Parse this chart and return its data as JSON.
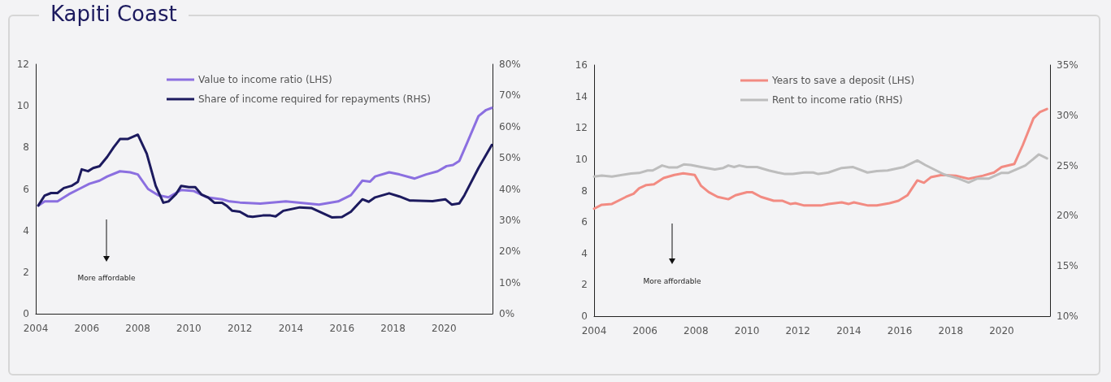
{
  "chart_data": [
    {
      "type": "line",
      "title": "Kapiti Coast",
      "xlim": [
        2004,
        2021.9
      ],
      "xticks": [
        2004,
        2006,
        2008,
        2010,
        2012,
        2014,
        2016,
        2018,
        2020
      ],
      "ylim": [
        0,
        12
      ],
      "yticks": [
        0,
        2,
        4,
        6,
        8,
        10,
        12
      ],
      "y2lim": [
        0,
        80
      ],
      "y2ticks": [
        {
          "value": 0,
          "label": "0%"
        },
        {
          "value": 10,
          "label": "10%"
        },
        {
          "value": 20,
          "label": "20%"
        },
        {
          "value": 30,
          "label": "30%"
        },
        {
          "value": 40,
          "label": "40%"
        },
        {
          "value": 50,
          "label": "50%"
        },
        {
          "value": 60,
          "label": "60%"
        },
        {
          "value": 70,
          "label": "70%"
        },
        {
          "value": 80,
          "label": "80%"
        }
      ],
      "grid": false,
      "legend": "top",
      "marker": "none",
      "line_style": "solid",
      "annotations": [
        "More affordable"
      ],
      "series": [
        {
          "name": "Value to income ratio (LHS)",
          "color": "#8b6fe0",
          "x": [
            2004.1,
            2004.35,
            2004.85,
            2005.3,
            2005.7,
            2006.1,
            2006.5,
            2006.8,
            2007.3,
            2007.7,
            2008.0,
            2008.4,
            2008.8,
            2009.2,
            2009.7,
            2010.2,
            2010.7,
            2011.3,
            2011.6,
            2012.0,
            2012.8,
            2013.8,
            2015.1,
            2015.85,
            2016.35,
            2016.8,
            2017.1,
            2017.3,
            2017.85,
            2018.25,
            2018.85,
            2019.3,
            2019.75,
            2020.1,
            2020.35,
            2020.6,
            2020.9,
            2021.35,
            2021.65,
            2021.87
          ],
          "values": [
            5.2,
            5.4,
            5.4,
            5.75,
            6.0,
            6.25,
            6.4,
            6.6,
            6.85,
            6.8,
            6.7,
            6.0,
            5.7,
            5.6,
            5.95,
            5.9,
            5.6,
            5.5,
            5.4,
            5.35,
            5.3,
            5.4,
            5.25,
            5.4,
            5.7,
            6.4,
            6.35,
            6.6,
            6.8,
            6.7,
            6.5,
            6.7,
            6.85,
            7.1,
            7.15,
            7.35,
            8.2,
            9.5,
            9.8,
            9.9
          ]
        },
        {
          "name": "Share of income required for repayments (RHS)",
          "color": "#1c1a5e",
          "axis": "y2",
          "x": [
            2004.1,
            2004.35,
            2004.6,
            2004.85,
            2005.1,
            2005.4,
            2005.65,
            2005.8,
            2006.05,
            2006.25,
            2006.5,
            2006.8,
            2007.05,
            2007.3,
            2007.6,
            2008.0,
            2008.35,
            2008.7,
            2009.0,
            2009.2,
            2009.5,
            2009.7,
            2010.0,
            2010.25,
            2010.5,
            2010.75,
            2011.0,
            2011.3,
            2011.5,
            2011.7,
            2012.0,
            2012.3,
            2012.5,
            2012.9,
            2013.2,
            2013.4,
            2013.7,
            2014.35,
            2014.8,
            2015.2,
            2015.6,
            2016.0,
            2016.35,
            2016.8,
            2017.05,
            2017.3,
            2017.85,
            2018.25,
            2018.65,
            2019.55,
            2020.05,
            2020.3,
            2020.6,
            2020.8,
            2021.35,
            2021.87
          ],
          "values": [
            34.7,
            37.9,
            38.7,
            38.7,
            40.3,
            41,
            42.3,
            46.3,
            45.7,
            46.7,
            47.3,
            50.3,
            53.3,
            56,
            56,
            57.4,
            51.3,
            41,
            35.6,
            36,
            38.4,
            41,
            40.6,
            40.6,
            38.2,
            37.3,
            35.6,
            35.6,
            34.5,
            33,
            32.7,
            31.3,
            31.1,
            31.5,
            31.5,
            31.2,
            33,
            34.1,
            33.9,
            32.4,
            30.9,
            31,
            32.7,
            36.7,
            35.9,
            37.3,
            38.6,
            37.6,
            36.3,
            36.1,
            36.7,
            35,
            35.4,
            38,
            46.7,
            54.1
          ]
        }
      ]
    },
    {
      "type": "line",
      "xlim": [
        2004,
        2021.9
      ],
      "xticks": [
        2004,
        2006,
        2008,
        2010,
        2012,
        2014,
        2016,
        2018,
        2020
      ],
      "ylim": [
        0,
        16
      ],
      "yticks": [
        0,
        2,
        4,
        6,
        8,
        10,
        12,
        14,
        16
      ],
      "y2lim": [
        10,
        35
      ],
      "y2ticks": [
        {
          "value": 10,
          "label": "10%"
        },
        {
          "value": 15,
          "label": "15%"
        },
        {
          "value": 20,
          "label": "20%"
        },
        {
          "value": 25,
          "label": "25%"
        },
        {
          "value": 30,
          "label": "30%"
        },
        {
          "value": 35,
          "label": "35%"
        }
      ],
      "grid": false,
      "legend": "top",
      "marker": "none",
      "line_style": "solid",
      "annotations": [
        "More affordable"
      ],
      "series": [
        {
          "name": "Years to save a deposit (LHS)",
          "color": "#f28b82",
          "x": [
            2004.0,
            2004.3,
            2004.7,
            2005.25,
            2005.55,
            2005.77,
            2006.05,
            2006.35,
            2006.73,
            2007.15,
            2007.5,
            2007.95,
            2008.2,
            2008.5,
            2008.85,
            2009.27,
            2009.55,
            2010.0,
            2010.2,
            2010.55,
            2011.05,
            2011.4,
            2011.7,
            2011.9,
            2012.25,
            2012.9,
            2013.2,
            2013.72,
            2014.0,
            2014.2,
            2014.76,
            2015.1,
            2015.6,
            2015.95,
            2016.3,
            2016.69,
            2016.95,
            2017.22,
            2017.65,
            2018.2,
            2018.7,
            2019.27,
            2019.7,
            2020.0,
            2020.5,
            2020.83,
            2021.25,
            2021.5,
            2021.78
          ],
          "values": [
            6.85,
            7.1,
            7.15,
            7.6,
            7.8,
            8.15,
            8.35,
            8.4,
            8.8,
            9.0,
            9.1,
            9.0,
            8.3,
            7.9,
            7.6,
            7.45,
            7.7,
            7.9,
            7.9,
            7.6,
            7.35,
            7.35,
            7.15,
            7.2,
            7.05,
            7.05,
            7.15,
            7.25,
            7.15,
            7.25,
            7.05,
            7.05,
            7.2,
            7.35,
            7.7,
            8.65,
            8.5,
            8.85,
            9.0,
            8.95,
            8.75,
            8.95,
            9.15,
            9.5,
            9.7,
            10.9,
            12.6,
            13.0,
            13.2
          ]
        },
        {
          "name": "Rent to income ratio (RHS)",
          "color": "#bdbdbd",
          "axis": "y2",
          "x": [
            2004.0,
            2004.3,
            2004.7,
            2005.45,
            2005.77,
            2006.1,
            2006.3,
            2006.67,
            2006.95,
            2007.25,
            2007.52,
            2007.8,
            2008.2,
            2008.74,
            2009.07,
            2009.27,
            2009.5,
            2009.7,
            2010.0,
            2010.4,
            2010.86,
            2011.2,
            2011.5,
            2011.8,
            2012.25,
            2012.6,
            2012.8,
            2013.2,
            2013.72,
            2014.15,
            2014.73,
            2015.1,
            2015.52,
            2016.16,
            2016.69,
            2017.0,
            2017.43,
            2017.75,
            2018.3,
            2018.7,
            2019.05,
            2019.5,
            2019.98,
            2020.25,
            2020.93,
            2021.46,
            2021.78
          ],
          "values": [
            23.9,
            24.0,
            23.9,
            24.2,
            24.25,
            24.5,
            24.5,
            25.0,
            24.8,
            24.8,
            25.1,
            25.05,
            24.85,
            24.6,
            24.75,
            25.0,
            24.85,
            25.0,
            24.85,
            24.85,
            24.5,
            24.3,
            24.15,
            24.15,
            24.3,
            24.3,
            24.15,
            24.3,
            24.75,
            24.85,
            24.3,
            24.45,
            24.5,
            24.85,
            25.5,
            25.05,
            24.5,
            24.1,
            23.7,
            23.3,
            23.7,
            23.7,
            24.25,
            24.25,
            25.0,
            26.1,
            25.7
          ]
        }
      ]
    }
  ]
}
